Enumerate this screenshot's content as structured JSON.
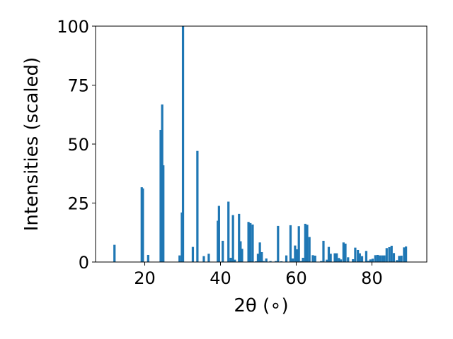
{
  "chart_data": {
    "type": "bar",
    "title": "",
    "xlabel": "2θ (∘)",
    "ylabel": "Intensities (scaled)",
    "xlim": [
      7,
      94.5
    ],
    "ylim": [
      0,
      100
    ],
    "xticks": [
      20,
      40,
      60,
      80
    ],
    "yticks": [
      0,
      25,
      50,
      75,
      100
    ],
    "bar_width": 0.6,
    "grid": false,
    "color": "#1f77b4",
    "series": [
      {
        "x": [
          12.0,
          19.2,
          19.5,
          20.9,
          24.2,
          24.6,
          24.9,
          29.2,
          29.8,
          30.1,
          32.7,
          33.9,
          35.6,
          36.9,
          39.3,
          39.6,
          40.6,
          42.1,
          42.7,
          43.3,
          43.8,
          44.9,
          45.3,
          45.7,
          47.4,
          47.9,
          48.5,
          49.4,
          49.9,
          50.4,
          50.9,
          51.4,
          52.1,
          53.2,
          54.6,
          55.2,
          56.1,
          57.4,
          58.5,
          59.1,
          59.7,
          60.2,
          60.7,
          61.3,
          61.8,
          62.4,
          62.9,
          63.5,
          64.4,
          65.0,
          66.6,
          67.2,
          68.1,
          68.6,
          69.1,
          70.2,
          70.7,
          71.3,
          71.8,
          72.5,
          73.0,
          73.7,
          75.0,
          75.6,
          76.3,
          76.8,
          77.4,
          78.5,
          79.1,
          79.6,
          80.2,
          80.9,
          81.5,
          82.1,
          82.7,
          83.3,
          83.9,
          84.6,
          85.2,
          85.8,
          86.6,
          87.2,
          87.8,
          88.5,
          89.0
        ],
        "y": [
          7.3,
          31.7,
          31.2,
          3.0,
          56.0,
          66.8,
          41.0,
          2.8,
          21.0,
          100.0,
          6.4,
          47.1,
          2.5,
          3.5,
          17.5,
          23.8,
          9.0,
          25.6,
          1.8,
          19.9,
          1.0,
          20.4,
          8.8,
          5.6,
          17.0,
          16.5,
          15.9,
          0.3,
          3.5,
          8.3,
          4.2,
          0.4,
          1.5,
          0.4,
          0.4,
          15.3,
          0.3,
          2.8,
          15.6,
          1.5,
          7.0,
          5.4,
          15.2,
          0.4,
          1.8,
          16.2,
          15.8,
          10.6,
          2.9,
          2.7,
          0.4,
          9.0,
          1.0,
          6.4,
          3.5,
          3.7,
          3.7,
          1.7,
          1.1,
          8.3,
          7.8,
          2.0,
          1.2,
          6.1,
          5.1,
          3.7,
          2.5,
          4.7,
          0.5,
          1.1,
          1.4,
          2.9,
          3.0,
          2.8,
          2.8,
          2.8,
          5.9,
          6.3,
          6.9,
          3.8,
          0.8,
          2.6,
          2.7,
          6.2,
          6.6
        ]
      }
    ]
  }
}
